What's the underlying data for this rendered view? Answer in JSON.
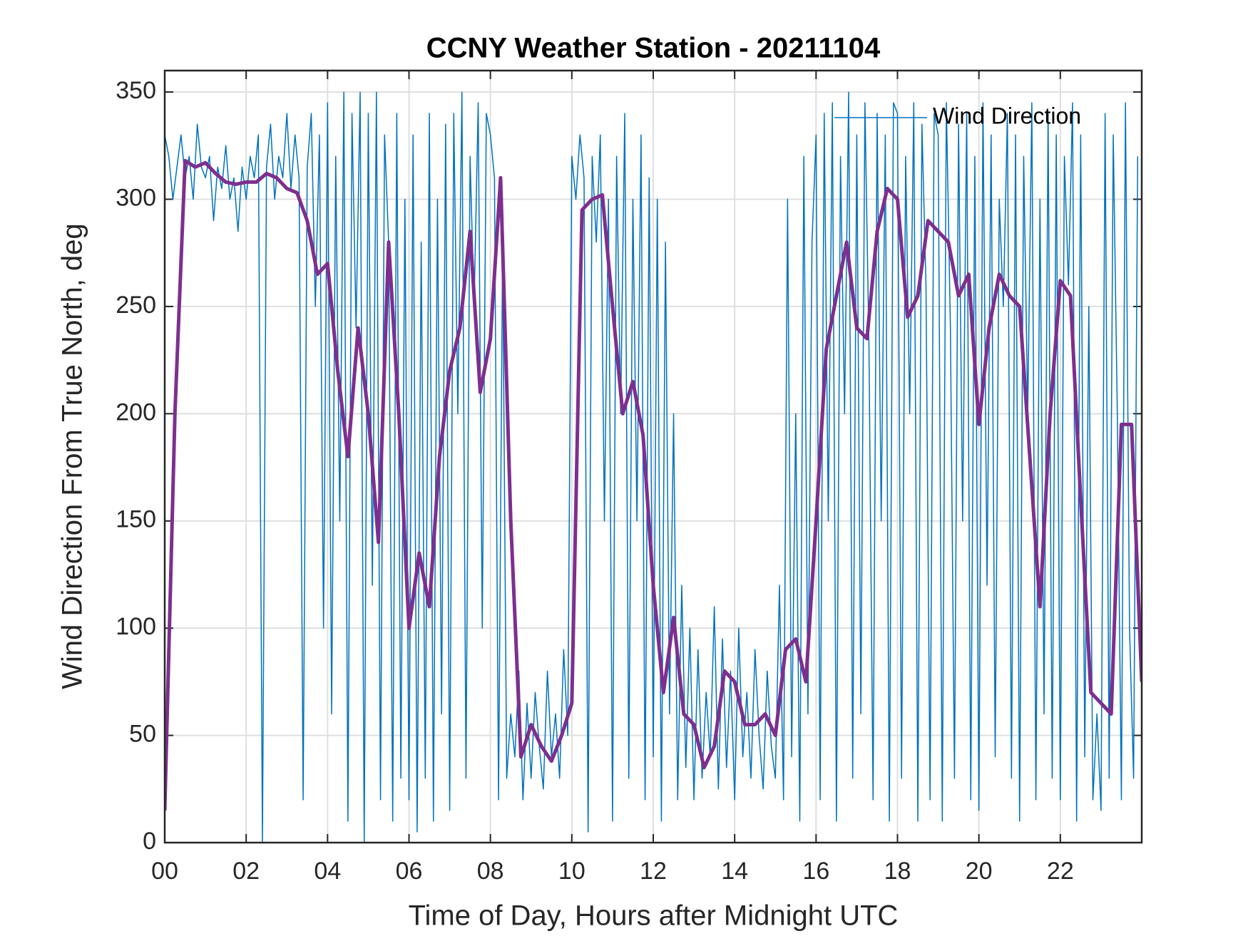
{
  "chart_data": {
    "type": "line",
    "title": "CCNY Weather Station - 20211104",
    "xlabel": "Time of Day, Hours after Midnight UTC",
    "ylabel": "Wind Direction From True North, deg",
    "xlim": [
      0,
      24
    ],
    "ylim": [
      0,
      360
    ],
    "xticks": [
      {
        "value": 0,
        "label": "00"
      },
      {
        "value": 2,
        "label": "02"
      },
      {
        "value": 4,
        "label": "04"
      },
      {
        "value": 6,
        "label": "06"
      },
      {
        "value": 8,
        "label": "08"
      },
      {
        "value": 10,
        "label": "10"
      },
      {
        "value": 12,
        "label": "12"
      },
      {
        "value": 14,
        "label": "14"
      },
      {
        "value": 16,
        "label": "16"
      },
      {
        "value": 18,
        "label": "18"
      },
      {
        "value": 20,
        "label": "20"
      },
      {
        "value": 22,
        "label": "22"
      }
    ],
    "yticks": [
      0,
      50,
      100,
      150,
      200,
      250,
      300,
      350
    ],
    "grid": true,
    "legend": "upper right",
    "series": [
      {
        "name": "Wind Direction",
        "color": "#0072bd",
        "width": 1.5,
        "x": [
          0,
          0.1,
          0.2,
          0.3,
          0.4,
          0.5,
          0.6,
          0.7,
          0.8,
          0.9,
          1,
          1.1,
          1.2,
          1.3,
          1.4,
          1.5,
          1.6,
          1.7,
          1.8,
          1.9,
          2,
          2.1,
          2.2,
          2.3,
          2.4,
          2.5,
          2.6,
          2.7,
          2.8,
          2.9,
          3,
          3.1,
          3.2,
          3.3,
          3.4,
          3.5,
          3.6,
          3.7,
          3.8,
          3.9,
          4,
          4.1,
          4.2,
          4.3,
          4.4,
          4.5,
          4.6,
          4.7,
          4.8,
          4.9,
          5,
          5.1,
          5.2,
          5.3,
          5.4,
          5.5,
          5.6,
          5.7,
          5.8,
          5.9,
          6,
          6.1,
          6.2,
          6.3,
          6.4,
          6.5,
          6.6,
          6.7,
          6.8,
          6.9,
          7,
          7.1,
          7.2,
          7.3,
          7.4,
          7.5,
          7.6,
          7.7,
          7.8,
          7.9,
          8,
          8.1,
          8.2,
          8.3,
          8.4,
          8.5,
          8.6,
          8.7,
          8.8,
          8.9,
          9,
          9.1,
          9.2,
          9.3,
          9.4,
          9.5,
          9.6,
          9.7,
          9.8,
          9.9,
          10,
          10.1,
          10.2,
          10.3,
          10.4,
          10.5,
          10.6,
          10.7,
          10.8,
          10.9,
          11,
          11.1,
          11.2,
          11.3,
          11.4,
          11.5,
          11.6,
          11.7,
          11.8,
          11.9,
          12,
          12.1,
          12.2,
          12.3,
          12.4,
          12.5,
          12.6,
          12.7,
          12.8,
          12.9,
          13,
          13.1,
          13.2,
          13.3,
          13.4,
          13.5,
          13.6,
          13.7,
          13.8,
          13.9,
          14,
          14.1,
          14.2,
          14.3,
          14.4,
          14.5,
          14.6,
          14.7,
          14.8,
          14.9,
          15,
          15.1,
          15.2,
          15.3,
          15.4,
          15.5,
          15.6,
          15.7,
          15.8,
          15.9,
          16,
          16.1,
          16.2,
          16.3,
          16.4,
          16.5,
          16.6,
          16.7,
          16.8,
          16.9,
          17,
          17.1,
          17.2,
          17.3,
          17.4,
          17.5,
          17.6,
          17.7,
          17.8,
          17.9,
          18,
          18.1,
          18.2,
          18.3,
          18.4,
          18.5,
          18.6,
          18.7,
          18.8,
          18.9,
          19,
          19.1,
          19.2,
          19.3,
          19.4,
          19.5,
          19.6,
          19.7,
          19.8,
          19.9,
          20,
          20.1,
          20.2,
          20.3,
          20.4,
          20.5,
          20.6,
          20.7,
          20.8,
          20.9,
          21,
          21.1,
          21.2,
          21.3,
          21.4,
          21.5,
          21.6,
          21.7,
          21.8,
          21.9,
          22,
          22.1,
          22.2,
          22.3,
          22.4,
          22.5,
          22.6,
          22.7,
          22.8,
          22.9,
          23,
          23.1,
          23.2,
          23.3,
          23.4,
          23.5,
          23.6,
          23.7,
          23.8,
          23.9
        ],
        "values": [
          330,
          320,
          300,
          315,
          330,
          310,
          320,
          300,
          335,
          315,
          310,
          320,
          290,
          315,
          305,
          325,
          300,
          310,
          285,
          315,
          300,
          320,
          310,
          330,
          0,
          315,
          335,
          300,
          320,
          310,
          340,
          305,
          330,
          310,
          20,
          315,
          340,
          250,
          330,
          100,
          345,
          60,
          320,
          150,
          350,
          10,
          340,
          240,
          350,
          0,
          340,
          120,
          350,
          20,
          330,
          280,
          10,
          340,
          30,
          300,
          20,
          330,
          5,
          280,
          30,
          340,
          10,
          300,
          60,
          335,
          15,
          340,
          200,
          350,
          30,
          320,
          250,
          345,
          100,
          340,
          330,
          310,
          20,
          280,
          30,
          60,
          40,
          80,
          20,
          65,
          30,
          70,
          45,
          25,
          80,
          40,
          60,
          30,
          90,
          50,
          320,
          300,
          330,
          310,
          5,
          320,
          280,
          330,
          150,
          300,
          10,
          320,
          200,
          340,
          30,
          300,
          150,
          330,
          20,
          310,
          40,
          300,
          10,
          280,
          60,
          200,
          20,
          120,
          35,
          100,
          20,
          90,
          30,
          70,
          40,
          110,
          25,
          95,
          35,
          80,
          20,
          100,
          40,
          70,
          30,
          90,
          50,
          25,
          80,
          45,
          30,
          120,
          20,
          300,
          40,
          200,
          10,
          320,
          60,
          280,
          330,
          20,
          340,
          150,
          345,
          10,
          320,
          200,
          350,
          30,
          330,
          60,
          345,
          230,
          20,
          340,
          150,
          330,
          10,
          345,
          340,
          30,
          320,
          200,
          345,
          10,
          335,
          260,
          20,
          340,
          330,
          10,
          345,
          240,
          30,
          335,
          150,
          340,
          20,
          320,
          15,
          345,
          120,
          330,
          40,
          300,
          250,
          340,
          30,
          330,
          10,
          320,
          200,
          345,
          20,
          300,
          60,
          340,
          30,
          330,
          20,
          320,
          260,
          345,
          10,
          330,
          40,
          250,
          20,
          60,
          15,
          340,
          30,
          330,
          200,
          20,
          345,
          100,
          30,
          320
        ]
      },
      {
        "color": "#7e2f8e",
        "width": 5,
        "x": [
          0,
          0.25,
          0.5,
          0.75,
          1,
          1.25,
          1.5,
          1.75,
          2,
          2.25,
          2.5,
          2.75,
          3,
          3.25,
          3.5,
          3.75,
          4,
          4.25,
          4.5,
          4.75,
          5,
          5.25,
          5.5,
          5.75,
          6,
          6.25,
          6.5,
          6.75,
          7,
          7.25,
          7.5,
          7.75,
          8,
          8.25,
          8.5,
          8.75,
          9,
          9.25,
          9.5,
          9.75,
          10,
          10.25,
          10.5,
          10.75,
          11,
          11.25,
          11.5,
          11.75,
          12,
          12.25,
          12.5,
          12.75,
          13,
          13.25,
          13.5,
          13.75,
          14,
          14.25,
          14.5,
          14.75,
          15,
          15.25,
          15.5,
          15.75,
          16,
          16.25,
          16.5,
          16.75,
          17,
          17.25,
          17.5,
          17.75,
          18,
          18.25,
          18.5,
          18.75,
          19,
          19.25,
          19.5,
          19.75,
          20,
          20.25,
          20.5,
          20.75,
          21,
          21.25,
          21.5,
          21.75,
          22,
          22.25,
          22.5,
          22.75,
          23,
          23.25,
          23.5,
          23.75,
          24
        ],
        "values": [
          15,
          200,
          318,
          315,
          317,
          312,
          308,
          307,
          308,
          308,
          312,
          310,
          305,
          303,
          290,
          265,
          270,
          220,
          180,
          240,
          200,
          140,
          280,
          200,
          100,
          135,
          110,
          180,
          220,
          240,
          285,
          210,
          235,
          310,
          150,
          40,
          55,
          45,
          38,
          50,
          65,
          295,
          300,
          302,
          250,
          200,
          215,
          190,
          120,
          70,
          105,
          60,
          55,
          35,
          45,
          80,
          75,
          55,
          55,
          60,
          50,
          90,
          95,
          75,
          150,
          230,
          255,
          280,
          240,
          235,
          285,
          305,
          300,
          245,
          255,
          290,
          285,
          280,
          255,
          265,
          195,
          240,
          265,
          255,
          250,
          180,
          110,
          200,
          262,
          255,
          160,
          70,
          65,
          60,
          195,
          195,
          75
        ]
      }
    ]
  }
}
